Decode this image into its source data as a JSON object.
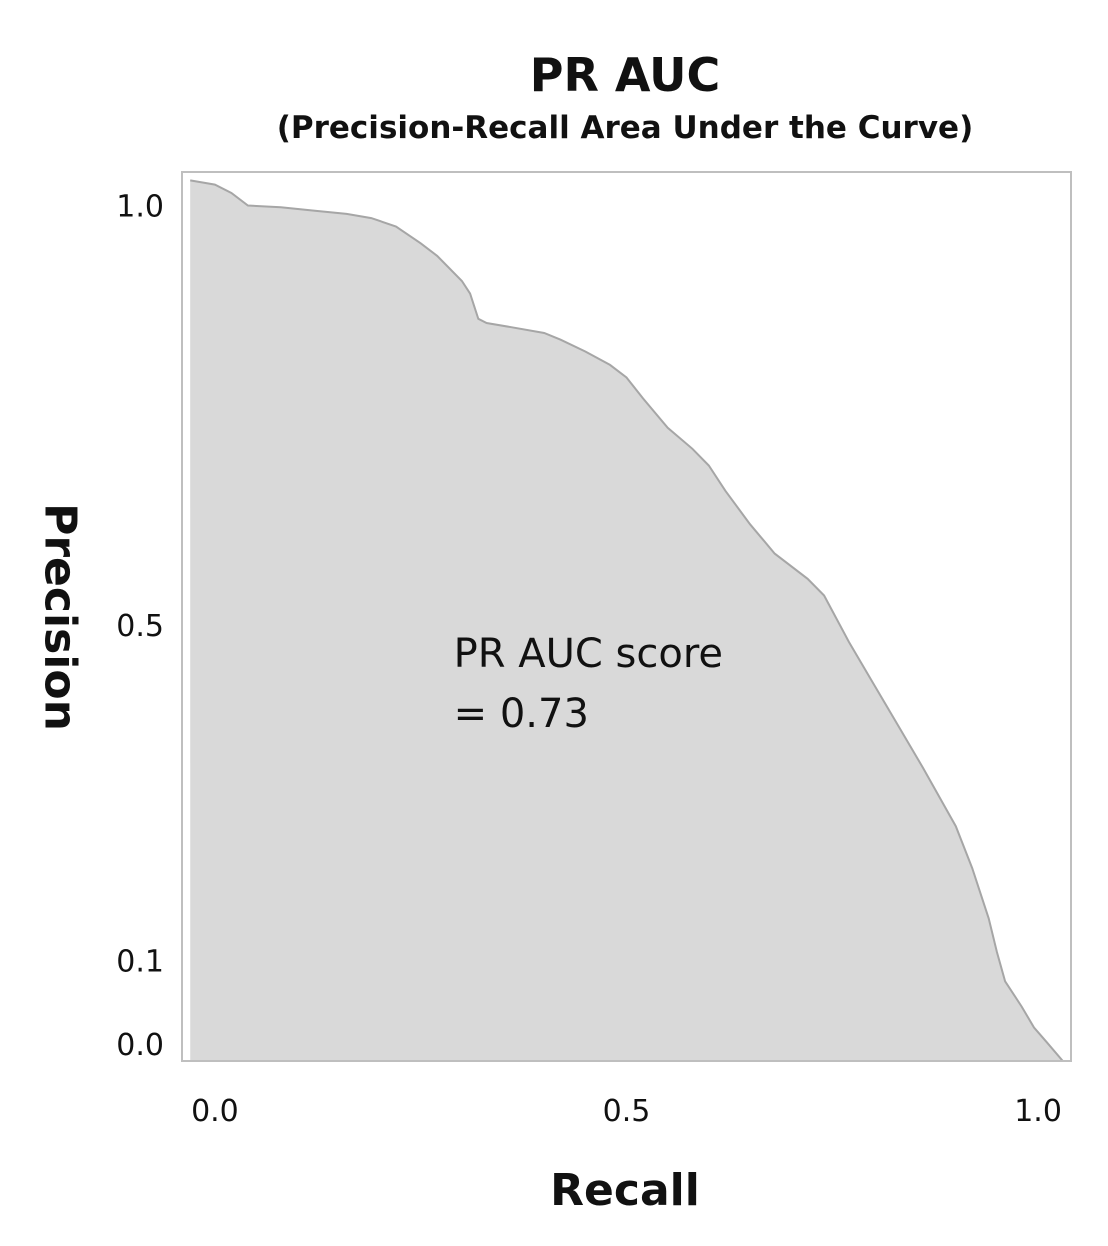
{
  "chart_data": {
    "type": "area",
    "title": "PR AUC",
    "subtitle": "(Precision-Recall Area Under the Curve)",
    "xlabel": "Recall",
    "ylabel": "Precision",
    "xlim": [
      -0.04,
      1.04
    ],
    "ylim": [
      -0.02,
      1.04
    ],
    "x_ticks": [
      "0.0",
      "0.5",
      "1.0"
    ],
    "x_tick_values": [
      0.0,
      0.5,
      1.0
    ],
    "y_ticks": [
      "1.0",
      "0.5",
      "0.1",
      "0.0"
    ],
    "y_tick_values": [
      1.0,
      0.5,
      0.1,
      0.0
    ],
    "grid": false,
    "annotation": [
      "PR AUC score",
      "= 0.73"
    ],
    "annotation_anchor": {
      "x": 0.29,
      "y": 0.45
    },
    "fill_color": "#d9d9d9",
    "line_color": "#a6a6a6",
    "frame_color": "#bfbfbf",
    "points": [
      {
        "x": -0.03,
        "y": 1.03
      },
      {
        "x": 0.0,
        "y": 1.025
      },
      {
        "x": 0.02,
        "y": 1.015
      },
      {
        "x": 0.04,
        "y": 1.0
      },
      {
        "x": 0.08,
        "y": 0.998
      },
      {
        "x": 0.12,
        "y": 0.994
      },
      {
        "x": 0.16,
        "y": 0.99
      },
      {
        "x": 0.19,
        "y": 0.985
      },
      {
        "x": 0.22,
        "y": 0.975
      },
      {
        "x": 0.25,
        "y": 0.955
      },
      {
        "x": 0.27,
        "y": 0.94
      },
      {
        "x": 0.3,
        "y": 0.91
      },
      {
        "x": 0.31,
        "y": 0.895
      },
      {
        "x": 0.32,
        "y": 0.865
      },
      {
        "x": 0.33,
        "y": 0.86
      },
      {
        "x": 0.36,
        "y": 0.855
      },
      {
        "x": 0.4,
        "y": 0.848
      },
      {
        "x": 0.42,
        "y": 0.84
      },
      {
        "x": 0.45,
        "y": 0.826
      },
      {
        "x": 0.48,
        "y": 0.81
      },
      {
        "x": 0.5,
        "y": 0.795
      },
      {
        "x": 0.52,
        "y": 0.77
      },
      {
        "x": 0.55,
        "y": 0.735
      },
      {
        "x": 0.58,
        "y": 0.71
      },
      {
        "x": 0.6,
        "y": 0.69
      },
      {
        "x": 0.62,
        "y": 0.66
      },
      {
        "x": 0.65,
        "y": 0.62
      },
      {
        "x": 0.68,
        "y": 0.585
      },
      {
        "x": 0.72,
        "y": 0.555
      },
      {
        "x": 0.74,
        "y": 0.535
      },
      {
        "x": 0.77,
        "y": 0.48
      },
      {
        "x": 0.8,
        "y": 0.43
      },
      {
        "x": 0.83,
        "y": 0.38
      },
      {
        "x": 0.86,
        "y": 0.33
      },
      {
        "x": 0.9,
        "y": 0.26
      },
      {
        "x": 0.92,
        "y": 0.21
      },
      {
        "x": 0.94,
        "y": 0.15
      },
      {
        "x": 0.95,
        "y": 0.11
      },
      {
        "x": 0.96,
        "y": 0.075
      },
      {
        "x": 0.98,
        "y": 0.045
      },
      {
        "x": 0.995,
        "y": 0.02
      },
      {
        "x": 1.01,
        "y": 0.003
      },
      {
        "x": 1.03,
        "y": -0.02
      }
    ]
  }
}
